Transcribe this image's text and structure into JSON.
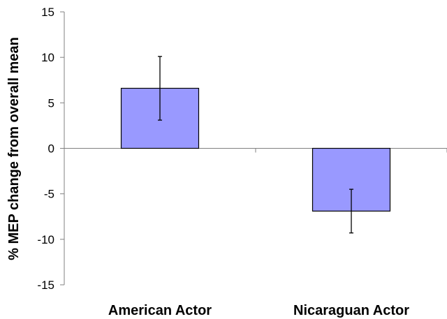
{
  "chart_data": {
    "type": "bar",
    "title": "",
    "xlabel": "",
    "ylabel": "% MEP change from overall mean",
    "categories": [
      "American Actor",
      "Nicaraguan Actor"
    ],
    "values": [
      6.6,
      -6.9
    ],
    "error": [
      3.5,
      2.4
    ],
    "ylim": [
      -15,
      15
    ],
    "yticks": [
      15,
      10,
      5,
      0,
      -5,
      -10,
      -15
    ],
    "tick_labels": [
      "15",
      "10",
      "5",
      "0",
      "-5",
      "-10",
      "-15"
    ],
    "grid": false,
    "legend": "none",
    "colors": {
      "bar_fill": "#9999ff",
      "bar_stroke": "#000000",
      "axis": "#808080",
      "error_bar": "#000000"
    }
  }
}
